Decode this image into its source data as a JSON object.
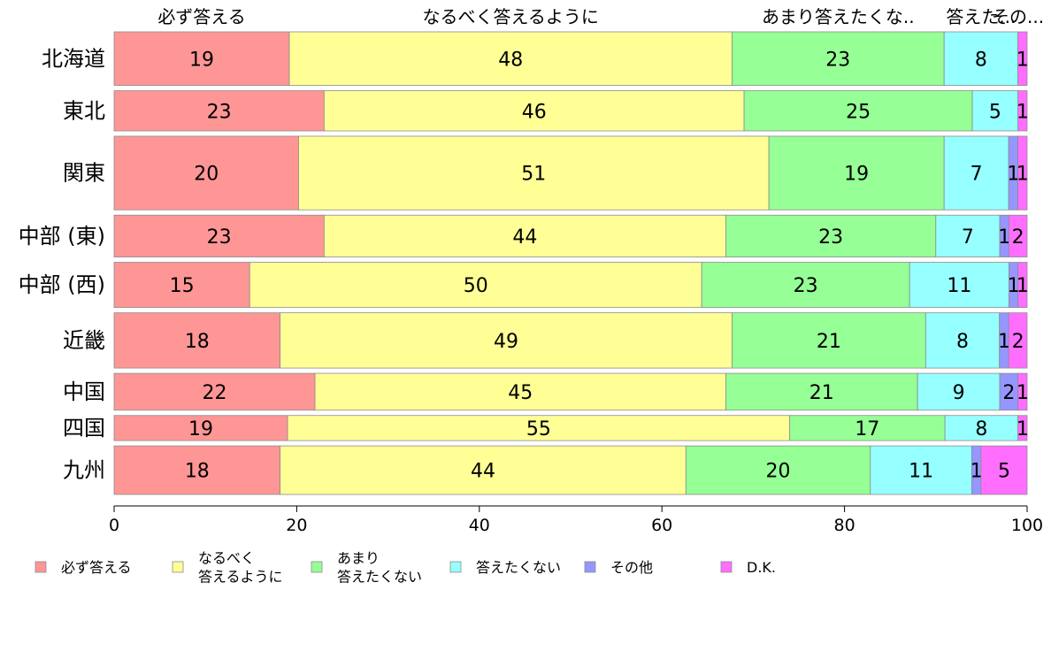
{
  "chart_data": {
    "type": "bar",
    "orientation": "horizontal",
    "stacked": true,
    "variable_width": true,
    "categories": [
      "北海道",
      "東北",
      "関東",
      "中部 (東)",
      "中部 (西)",
      "近畿",
      "中国",
      "四国",
      "九州"
    ],
    "series": [
      {
        "name": "必ず答える",
        "short_name": "必ず答える",
        "color": "#ff9696",
        "values": [
          19,
          23,
          20,
          23,
          15,
          18,
          22,
          19,
          18
        ]
      },
      {
        "name": "なるべく\n答えるように",
        "short_name": "なるべく答えるように",
        "color": "#ffff96",
        "values": [
          48,
          46,
          51,
          44,
          50,
          49,
          45,
          55,
          44
        ]
      },
      {
        "name": "あまり\n答えたくない",
        "short_name": "あまり答えたくな..",
        "color": "#96ff96",
        "values": [
          23,
          25,
          19,
          23,
          23,
          21,
          21,
          17,
          20
        ]
      },
      {
        "name": "答えたくない",
        "short_name": "答えた...",
        "color": "#96ffff",
        "values": [
          8,
          5,
          7,
          7,
          11,
          8,
          9,
          8,
          11
        ]
      },
      {
        "name": "その他",
        "short_name": "その...",
        "color": "#9696ff",
        "values": [
          0,
          0,
          1,
          1,
          1,
          1,
          2,
          0,
          1
        ]
      },
      {
        "name": "D.K.",
        "short_name": "",
        "color": "#ff6eff",
        "values": [
          1,
          1,
          1,
          2,
          1,
          2,
          1,
          1,
          5
        ]
      }
    ],
    "relative_widths": [
      32,
      24,
      44,
      25,
      27,
      33,
      22,
      15,
      29
    ],
    "data_labels_shown": [
      [
        "19",
        "48",
        "23",
        "8",
        "",
        "1"
      ],
      [
        "23",
        "46",
        "25",
        "5",
        "",
        "1"
      ],
      [
        "20",
        "51",
        "19",
        "7",
        "1",
        "1"
      ],
      [
        "23",
        "44",
        "23",
        "7",
        "1",
        "2"
      ],
      [
        "15",
        "50",
        "23",
        "11",
        "1",
        "1"
      ],
      [
        "18",
        "49",
        "21",
        "8",
        "1",
        "2"
      ],
      [
        "22",
        "45",
        "21",
        "9",
        "2",
        "1"
      ],
      [
        "19",
        "55",
        "17",
        "8",
        "",
        "1"
      ],
      [
        "18",
        "44",
        "20",
        "11",
        "1",
        "5"
      ]
    ],
    "xlim": [
      0,
      100
    ],
    "xticks": [
      0,
      20,
      40,
      60,
      80,
      100
    ],
    "title": "",
    "xlabel": "",
    "ylabel": "",
    "grid": false,
    "legend_position": "bottom"
  }
}
